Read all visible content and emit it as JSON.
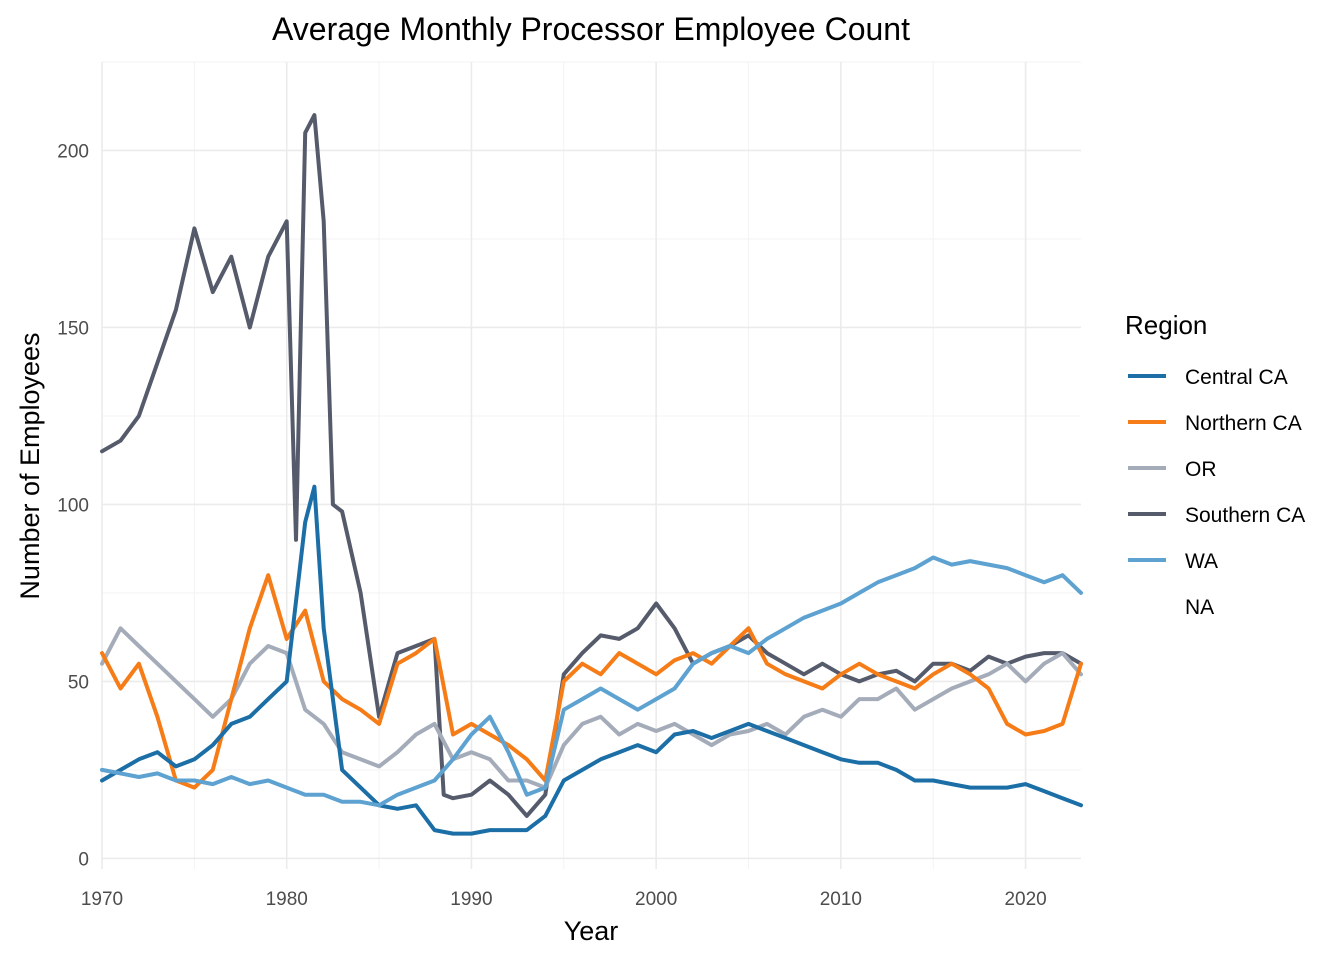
{
  "chart_data": {
    "type": "line",
    "title": "Average Monthly Processor Employee Count",
    "xlabel": "Year",
    "ylabel": "Number of Employees",
    "xlim": [
      1970,
      2023
    ],
    "ylim": [
      -3,
      225
    ],
    "x_ticks": [
      1970,
      1980,
      1990,
      2000,
      2010,
      2020
    ],
    "y_ticks": [
      0,
      50,
      100,
      150,
      200
    ],
    "grid": true,
    "legend": {
      "title": "Region",
      "placement": "right",
      "entries": [
        "Central CA",
        "Northern CA",
        "OR",
        "Southern CA",
        "WA",
        "NA"
      ]
    },
    "series": [
      {
        "name": "Southern CA",
        "color": "#555b6b",
        "x": [
          1970,
          1971,
          1972,
          1973,
          1974,
          1975,
          1976,
          1977,
          1978,
          1979,
          1980,
          1980.5,
          1981,
          1981.5,
          1982,
          1982.5,
          1983,
          1984,
          1985,
          1986,
          1987,
          1988,
          1988.5,
          1989,
          1990,
          1991,
          1992,
          1993,
          1994,
          1995,
          1996,
          1997,
          1998,
          1999,
          2000,
          2001,
          2002,
          2003,
          2004,
          2005,
          2006,
          2007,
          2008,
          2009,
          2010,
          2011,
          2012,
          2013,
          2014,
          2015,
          2016,
          2017,
          2018,
          2019,
          2020,
          2021,
          2022,
          2023
        ],
        "y": [
          115,
          118,
          125,
          140,
          155,
          178,
          160,
          170,
          150,
          170,
          180,
          90,
          205,
          210,
          180,
          100,
          98,
          75,
          40,
          58,
          60,
          62,
          18,
          17,
          18,
          22,
          18,
          12,
          18,
          52,
          58,
          63,
          62,
          65,
          72,
          65,
          55,
          58,
          60,
          63,
          58,
          55,
          52,
          55,
          52,
          50,
          52,
          53,
          50,
          55,
          55,
          53,
          57,
          55,
          57,
          58,
          58,
          55
        ]
      },
      {
        "name": "OR",
        "color": "#a5acb9",
        "x": [
          1970,
          1971,
          1972,
          1973,
          1974,
          1975,
          1976,
          1977,
          1978,
          1979,
          1980,
          1981,
          1982,
          1983,
          1984,
          1985,
          1986,
          1987,
          1988,
          1989,
          1990,
          1991,
          1992,
          1993,
          1994,
          1995,
          1996,
          1997,
          1998,
          1999,
          2000,
          2001,
          2002,
          2003,
          2004,
          2005,
          2006,
          2007,
          2008,
          2009,
          2010,
          2011,
          2012,
          2013,
          2014,
          2015,
          2016,
          2017,
          2018,
          2019,
          2020,
          2021,
          2022,
          2023
        ],
        "y": [
          55,
          65,
          60,
          55,
          50,
          45,
          40,
          45,
          55,
          60,
          58,
          42,
          38,
          30,
          28,
          26,
          30,
          35,
          38,
          28,
          30,
          28,
          22,
          22,
          20,
          32,
          38,
          40,
          35,
          38,
          36,
          38,
          35,
          32,
          35,
          36,
          38,
          35,
          40,
          42,
          40,
          45,
          45,
          48,
          42,
          45,
          48,
          50,
          52,
          55,
          50,
          55,
          58,
          52
        ]
      },
      {
        "name": "Northern CA",
        "color": "#f57c16",
        "x": [
          1970,
          1971,
          1972,
          1973,
          1974,
          1975,
          1976,
          1977,
          1978,
          1979,
          1980,
          1981,
          1982,
          1983,
          1984,
          1985,
          1986,
          1987,
          1988,
          1989,
          1990,
          1991,
          1992,
          1993,
          1994,
          1995,
          1996,
          1997,
          1998,
          1999,
          2000,
          2001,
          2002,
          2003,
          2004,
          2005,
          2006,
          2007,
          2008,
          2009,
          2010,
          2011,
          2012,
          2013,
          2014,
          2015,
          2016,
          2017,
          2018,
          2019,
          2020,
          2021,
          2022,
          2023
        ],
        "y": [
          58,
          48,
          55,
          40,
          22,
          20,
          25,
          45,
          65,
          80,
          62,
          70,
          50,
          45,
          42,
          38,
          55,
          58,
          62,
          35,
          38,
          35,
          32,
          28,
          22,
          50,
          55,
          52,
          58,
          55,
          52,
          56,
          58,
          55,
          60,
          65,
          55,
          52,
          50,
          48,
          52,
          55,
          52,
          50,
          48,
          52,
          55,
          52,
          48,
          38,
          35,
          36,
          38,
          55
        ]
      },
      {
        "name": "Central CA",
        "color": "#1c6ea6",
        "x": [
          1970,
          1971,
          1972,
          1973,
          1974,
          1975,
          1976,
          1977,
          1978,
          1979,
          1980,
          1981,
          1981.5,
          1982,
          1983,
          1984,
          1985,
          1986,
          1987,
          1988,
          1989,
          1990,
          1991,
          1992,
          1993,
          1994,
          1995,
          1996,
          1997,
          1998,
          1999,
          2000,
          2001,
          2002,
          2003,
          2004,
          2005,
          2006,
          2007,
          2008,
          2009,
          2010,
          2011,
          2012,
          2013,
          2014,
          2015,
          2016,
          2017,
          2018,
          2019,
          2020,
          2021,
          2022,
          2023
        ],
        "y": [
          22,
          25,
          28,
          30,
          26,
          28,
          32,
          38,
          40,
          45,
          50,
          95,
          105,
          65,
          25,
          20,
          15,
          14,
          15,
          8,
          7,
          7,
          8,
          8,
          8,
          12,
          22,
          25,
          28,
          30,
          32,
          30,
          35,
          36,
          34,
          36,
          38,
          36,
          34,
          32,
          30,
          28,
          27,
          27,
          25,
          22,
          22,
          21,
          20,
          20,
          20,
          21,
          19,
          17,
          15
        ]
      },
      {
        "name": "WA",
        "color": "#5da2d1",
        "x": [
          1970,
          1971,
          1972,
          1973,
          1974,
          1975,
          1976,
          1977,
          1978,
          1979,
          1980,
          1981,
          1982,
          1983,
          1984,
          1985,
          1986,
          1987,
          1988,
          1989,
          1990,
          1991,
          1992,
          1993,
          1994,
          1995,
          1996,
          1997,
          1998,
          1999,
          2000,
          2001,
          2002,
          2003,
          2004,
          2005,
          2006,
          2007,
          2008,
          2009,
          2010,
          2011,
          2012,
          2013,
          2014,
          2015,
          2016,
          2017,
          2018,
          2019,
          2020,
          2021,
          2022,
          2023
        ],
        "y": [
          25,
          24,
          23,
          24,
          22,
          22,
          21,
          23,
          21,
          22,
          20,
          18,
          18,
          16,
          16,
          15,
          18,
          20,
          22,
          28,
          35,
          40,
          30,
          18,
          20,
          42,
          45,
          48,
          45,
          42,
          45,
          48,
          55,
          58,
          60,
          58,
          62,
          65,
          68,
          70,
          72,
          75,
          78,
          80,
          82,
          85,
          83,
          84,
          83,
          82,
          80,
          78,
          80,
          75
        ]
      }
    ]
  }
}
